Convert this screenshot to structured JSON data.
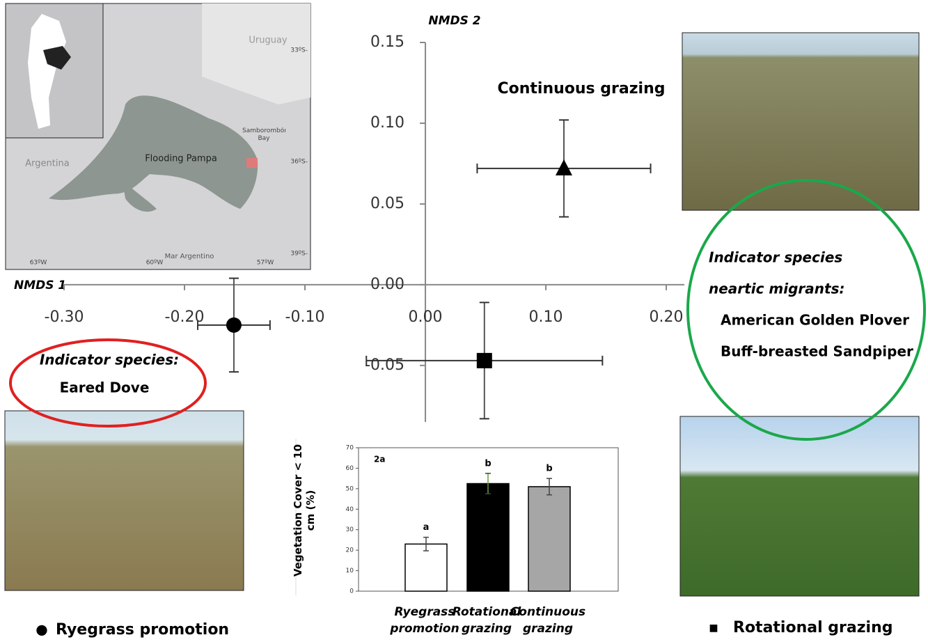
{
  "chart_data": [
    {
      "type": "scatter",
      "xlabel": "NMDS 1",
      "ylabel": "NMDS 2",
      "xlim": [
        -0.3,
        0.215
      ],
      "ylim": [
        -0.085,
        0.15
      ],
      "xticks": [
        {
          "value": -0.3,
          "label": "-0.30"
        },
        {
          "value": -0.2,
          "label": "-0.20"
        },
        {
          "value": -0.1,
          "label": "-0.10"
        },
        {
          "value": 0,
          "label": "0.00"
        },
        {
          "value": 0.1,
          "label": "0.10"
        },
        {
          "value": 0.2,
          "label": "0.20"
        }
      ],
      "yticks": [
        {
          "value": -0.05,
          "label": "-0.05"
        },
        {
          "value": 0,
          "label": "0.00"
        },
        {
          "value": 0.05,
          "label": "0.05"
        },
        {
          "value": 0.1,
          "label": "0.10"
        },
        {
          "value": 0.15,
          "label": "0.15"
        }
      ],
      "series": [
        {
          "name": "Ryegrass promotion",
          "marker": "circle",
          "color": "#000000",
          "x": [
            -0.159
          ],
          "values": [
            -0.025
          ],
          "xerr": [
            0.03
          ],
          "yerr": [
            0.029
          ]
        },
        {
          "name": "Rotational grazing",
          "marker": "square",
          "color": "#000000",
          "x": [
            0.049
          ],
          "values": [
            -0.047
          ],
          "xerr": [
            0.098
          ],
          "yerr": [
            0.036
          ]
        },
        {
          "name": "Continuous grazing",
          "marker": "triangle",
          "color": "#000000",
          "x": [
            0.115
          ],
          "values": [
            0.072
          ],
          "xerr": [
            0.072
          ],
          "yerr": [
            0.03
          ]
        }
      ],
      "annotations": [
        "Indicator species:",
        "Eared Dove",
        "Indicator species",
        "neartic migrants:",
        "American Golden Plover",
        "Buff-breasted Sandpiper"
      ]
    },
    {
      "type": "bar",
      "panel": "2a",
      "ylabel": "Vegetation Cover < 10 cm (%)",
      "categories": [
        "Ryegrass promotion",
        "Rotational grazing",
        "Continuous grazing"
      ],
      "values": [
        23,
        52.5,
        51
      ],
      "errors": [
        3.3,
        5,
        4
      ],
      "colors": [
        "#ffffff",
        "#000000",
        "#a6a6a6"
      ],
      "letters": [
        "a",
        "b",
        "b"
      ],
      "ylim": [
        0,
        70
      ],
      "yticks": [
        0,
        10,
        20,
        30,
        40,
        50,
        60,
        70
      ]
    }
  ],
  "map": {
    "labels": [
      "Uruguay",
      "Argentina",
      "Flooding Pampa",
      "Samborombón Bay",
      "Mar Argentino"
    ],
    "lat": [
      "33ºS-",
      "36ºS-",
      "39ºS-"
    ],
    "lon": [
      "63ºW",
      "60ºW",
      "57ºW"
    ]
  }
}
